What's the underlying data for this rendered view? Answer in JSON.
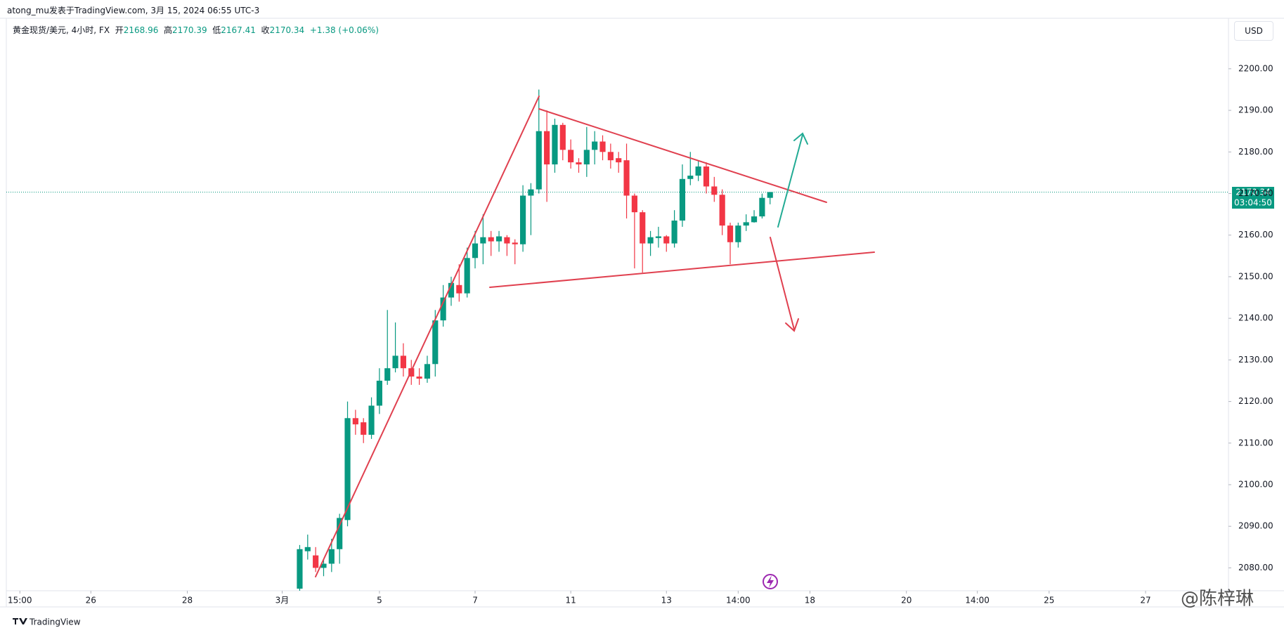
{
  "header": {
    "watermark": "atong_mu发表于TradingView.com, 3月 15, 2024 06:55 UTC-3",
    "symbol": "黄金现货/美元, 4小时, FX",
    "open_label": "开",
    "high_label": "高",
    "low_label": "低",
    "close_label": "收",
    "change": "+1.38 (+0.06%)"
  },
  "chart_data": {
    "type": "candlestick",
    "open": [
      2075,
      2084,
      2083,
      2080,
      2081,
      2084.5,
      2091.5,
      2116,
      2115,
      2112,
      2119,
      2125,
      2128,
      2131,
      2128,
      2126,
      2125.5,
      2129,
      2139.5,
      2145,
      2148,
      2146,
      2154.5,
      2158,
      2159.5,
      2158.5,
      2159.5,
      2158.2,
      2157.8,
      2169.5,
      2171,
      2185,
      2177,
      2186.5,
      2180.5,
      2177.5,
      2177,
      2180.5,
      2182.5,
      2180,
      2178.5,
      2178,
      2169.5,
      2165.5,
      2158,
      2159.3,
      2159.7,
      2158,
      2163.5,
      2173.5,
      2174.3,
      2176.5,
      2171.7,
      2169.7,
      2162.3,
      2158.3,
      2162.3,
      2163.1,
      2164.5,
      2168.96
    ],
    "high": [
      2085.5,
      2088,
      2085,
      2082,
      2087,
      2093,
      2120,
      2118,
      2116,
      2121,
      2128,
      2142,
      2139,
      2134,
      2130,
      2128,
      2131,
      2142,
      2148,
      2150,
      2153,
      2157,
      2161,
      2165,
      2161,
      2161,
      2160,
      2159,
      2172,
      2172.5,
      2195,
      2190,
      2188,
      2187,
      2183,
      2178.5,
      2186,
      2185,
      2184,
      2182,
      2180,
      2182,
      2170,
      2166,
      2161,
      2162,
      2160,
      2166,
      2177,
      2180,
      2178,
      2177.5,
      2174,
      2171,
      2163,
      2163,
      2165,
      2166,
      2170,
      2170.39
    ],
    "low": [
      2074,
      2082,
      2079,
      2078,
      2079,
      2081,
      2090,
      2112,
      2110,
      2111,
      2117,
      2124,
      2127,
      2126,
      2124,
      2124,
      2124.5,
      2126,
      2138,
      2143,
      2144,
      2145,
      2152,
      2153,
      2155,
      2156,
      2155,
      2153,
      2156,
      2160,
      2170,
      2168,
      2175,
      2178,
      2176,
      2175,
      2174,
      2177,
      2178,
      2176,
      2175,
      2164,
      2152,
      2151,
      2155,
      2157,
      2156,
      2157,
      2162,
      2172,
      2173,
      2170,
      2168,
      2160,
      2153,
      2157,
      2161,
      2163,
      2164,
      2167.41
    ],
    "close": [
      2084.5,
      2085,
      2080,
      2081,
      2084.5,
      2092,
      2116,
      2114.5,
      2112,
      2119,
      2125,
      2128,
      2131,
      2128,
      2126,
      2125.5,
      2129,
      2139.5,
      2145,
      2148.5,
      2146,
      2154.5,
      2158,
      2159.5,
      2158.5,
      2159.7,
      2158,
      2157.8,
      2169.5,
      2171,
      2185,
      2177,
      2186.5,
      2180.5,
      2177.5,
      2177,
      2180.5,
      2182.5,
      2180,
      2178,
      2177.5,
      2169.5,
      2165.5,
      2158,
      2159.5,
      2159.7,
      2158,
      2163.5,
      2173.5,
      2174.3,
      2176.5,
      2171.7,
      2169.7,
      2162.3,
      2158.3,
      2162.3,
      2163.1,
      2164.5,
      2168.96,
      2170.34
    ],
    "up_color": "#089981",
    "down_color": "#f23645",
    "ylim": [
      2074.5,
      2211.8
    ],
    "yticks": [
      {
        "value": 2080,
        "label": "2080.00"
      },
      {
        "value": 2090,
        "label": "2090.00"
      },
      {
        "value": 2100,
        "label": "2100.00"
      },
      {
        "value": 2110,
        "label": "2110.00"
      },
      {
        "value": 2120,
        "label": "2120.00"
      },
      {
        "value": 2130,
        "label": "2130.00"
      },
      {
        "value": 2140,
        "label": "2140.00"
      },
      {
        "value": 2150,
        "label": "2150.00"
      },
      {
        "value": 2160,
        "label": "2160.00"
      },
      {
        "value": 2170,
        "label": "2170.00"
      },
      {
        "value": 2180,
        "label": "2180.00"
      },
      {
        "value": 2190,
        "label": "2190.00"
      },
      {
        "value": 2200,
        "label": "2200.00"
      }
    ],
    "xlim": [
      -36.8,
      116.5
    ],
    "xticks": [
      {
        "value": -35.1,
        "label": "15:00"
      },
      {
        "value": -26.2,
        "label": "26"
      },
      {
        "value": -14.1,
        "label": "28"
      },
      {
        "value": -2.2,
        "label": "3月"
      },
      {
        "value": 10,
        "label": "5"
      },
      {
        "value": 22,
        "label": "7"
      },
      {
        "value": 34,
        "label": "11"
      },
      {
        "value": 46,
        "label": "13"
      },
      {
        "value": 55,
        "label": "14:00"
      },
      {
        "value": 64,
        "label": "18"
      },
      {
        "value": 76.1,
        "label": "20"
      },
      {
        "value": 85,
        "label": "14:00"
      },
      {
        "value": 94,
        "label": "25"
      },
      {
        "value": 106.1,
        "label": "27"
      }
    ],
    "currency": "USD",
    "countdown": "03:04:50"
  },
  "footer": {
    "brand": "TradingView",
    "author": "@陈梓琳"
  }
}
